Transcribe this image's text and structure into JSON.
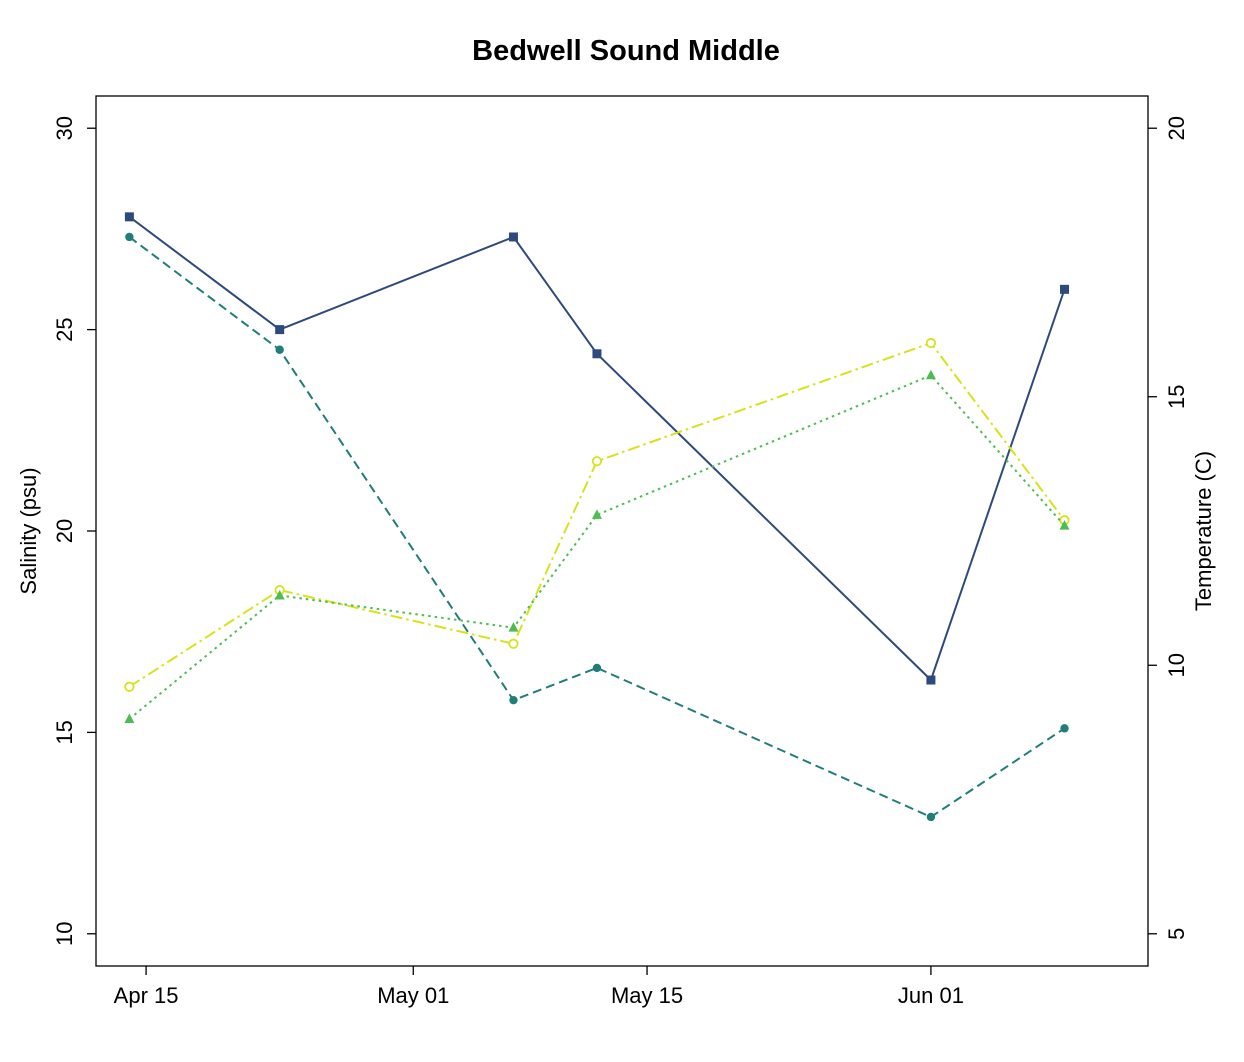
{
  "chart_data": {
    "type": "line",
    "title": "Bedwell Sound Middle",
    "xlabel": "",
    "ylabel": "Salinity (psu)",
    "y2label": "Temperature (C)",
    "xlim": [
      "2024-04-12",
      "2024-06-14"
    ],
    "ylim": [
      9.2,
      30.8
    ],
    "y2lim": [
      4.4,
      20.6
    ],
    "x_ticks": [
      {
        "date": "2024-04-15",
        "label": "Apr 15"
      },
      {
        "date": "2024-05-01",
        "label": "May 01"
      },
      {
        "date": "2024-05-15",
        "label": "May 15"
      },
      {
        "date": "2024-06-01",
        "label": "Jun 01"
      }
    ],
    "y_ticks": [
      10,
      15,
      20,
      25,
      30
    ],
    "y2_ticks": [
      5,
      10,
      15,
      20
    ],
    "grid": false,
    "legend": "none",
    "series": [
      {
        "axis": "left",
        "color": "#2e4a7d",
        "dash": "solid",
        "marker": "square",
        "points": [
          {
            "date": "2024-04-14",
            "value": 27.8
          },
          {
            "date": "2024-04-23",
            "value": 25.0
          },
          {
            "date": "2024-05-07",
            "value": 27.3
          },
          {
            "date": "2024-05-12",
            "value": 24.4
          },
          {
            "date": "2024-06-01",
            "value": 16.3
          },
          {
            "date": "2024-06-09",
            "value": 26.0
          }
        ]
      },
      {
        "axis": "left",
        "color": "#1f7d7a",
        "dash": "dashed",
        "marker": "circle",
        "points": [
          {
            "date": "2024-04-14",
            "value": 27.3
          },
          {
            "date": "2024-04-23",
            "value": 24.5
          },
          {
            "date": "2024-05-07",
            "value": 15.8
          },
          {
            "date": "2024-05-12",
            "value": 16.6
          },
          {
            "date": "2024-06-01",
            "value": 12.9
          },
          {
            "date": "2024-06-09",
            "value": 15.1
          }
        ]
      },
      {
        "axis": "right",
        "color": "#d8e219",
        "dash": "dashdot",
        "marker": "open-circle",
        "points": [
          {
            "date": "2024-04-14",
            "value": 9.6
          },
          {
            "date": "2024-04-23",
            "value": 11.4
          },
          {
            "date": "2024-05-07",
            "value": 10.4
          },
          {
            "date": "2024-05-12",
            "value": 13.8
          },
          {
            "date": "2024-06-01",
            "value": 16.0
          },
          {
            "date": "2024-06-09",
            "value": 12.7
          }
        ]
      },
      {
        "axis": "right",
        "color": "#4dbd52",
        "dash": "dotted",
        "marker": "triangle",
        "points": [
          {
            "date": "2024-04-14",
            "value": 9.0
          },
          {
            "date": "2024-04-23",
            "value": 11.3
          },
          {
            "date": "2024-05-07",
            "value": 10.7
          },
          {
            "date": "2024-05-12",
            "value": 12.8
          },
          {
            "date": "2024-06-01",
            "value": 15.4
          },
          {
            "date": "2024-06-09",
            "value": 12.6
          }
        ]
      }
    ]
  }
}
